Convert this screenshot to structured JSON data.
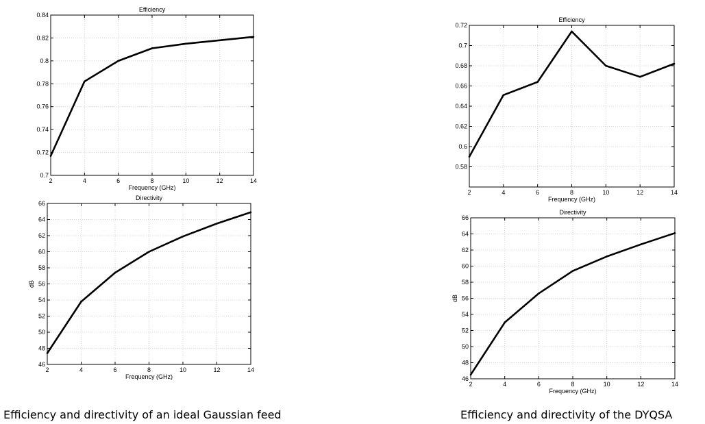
{
  "captions": {
    "left": "Efficiency and directivity of an ideal Gaussian feed",
    "right": "Efficiency and directivity of the DYQSA"
  },
  "chart_data": [
    {
      "type": "line",
      "title": "Efficiency",
      "xlabel": "Frequency (GHz)",
      "ylabel": "",
      "x": [
        2,
        4,
        6,
        8,
        10,
        12,
        14
      ],
      "y": [
        0.717,
        0.782,
        0.8,
        0.811,
        0.815,
        0.818,
        0.821
      ],
      "xlim": [
        2,
        14
      ],
      "ylim": [
        0.7,
        0.84
      ],
      "xticks": [
        2,
        4,
        6,
        8,
        10,
        12,
        14
      ],
      "yticks": [
        0.7,
        0.72,
        0.74,
        0.76,
        0.78,
        0.8,
        0.82,
        0.84
      ],
      "grid": true,
      "color": "#000000"
    },
    {
      "type": "line",
      "title": "Directivity",
      "xlabel": "Frequency (GHz)",
      "ylabel": "dB",
      "x": [
        2,
        4,
        6,
        8,
        10,
        12,
        14
      ],
      "y": [
        47.4,
        53.8,
        57.4,
        60.0,
        61.9,
        63.5,
        64.9
      ],
      "xlim": [
        2,
        14
      ],
      "ylim": [
        46,
        66
      ],
      "xticks": [
        2,
        4,
        6,
        8,
        10,
        12,
        14
      ],
      "yticks": [
        46,
        48,
        50,
        52,
        54,
        56,
        58,
        60,
        62,
        64,
        66
      ],
      "grid": true,
      "color": "#000000"
    },
    {
      "type": "line",
      "title": "Efficiency",
      "xlabel": "Frequency (GHz)",
      "ylabel": "",
      "x": [
        2,
        4,
        6,
        8,
        10,
        12,
        14
      ],
      "y": [
        0.59,
        0.651,
        0.664,
        0.714,
        0.68,
        0.669,
        0.682
      ],
      "xlim": [
        2,
        14
      ],
      "ylim": [
        0.56,
        0.72
      ],
      "xticks": [
        2,
        4,
        6,
        8,
        10,
        12,
        14
      ],
      "yticks": [
        0.58,
        0.6,
        0.62,
        0.64,
        0.66,
        0.68,
        0.7,
        0.72
      ],
      "grid": true,
      "color": "#000000"
    },
    {
      "type": "line",
      "title": "Directivity",
      "xlabel": "Frequency (GHz)",
      "ylabel": "dB",
      "x": [
        2,
        4,
        6,
        8,
        10,
        12,
        14
      ],
      "y": [
        46.5,
        53.0,
        56.6,
        59.4,
        61.2,
        62.7,
        64.1
      ],
      "xlim": [
        2,
        14
      ],
      "ylim": [
        46,
        66
      ],
      "xticks": [
        2,
        4,
        6,
        8,
        10,
        12,
        14
      ],
      "yticks": [
        46,
        48,
        50,
        52,
        54,
        56,
        58,
        60,
        62,
        64,
        66
      ],
      "grid": true,
      "color": "#000000"
    }
  ]
}
